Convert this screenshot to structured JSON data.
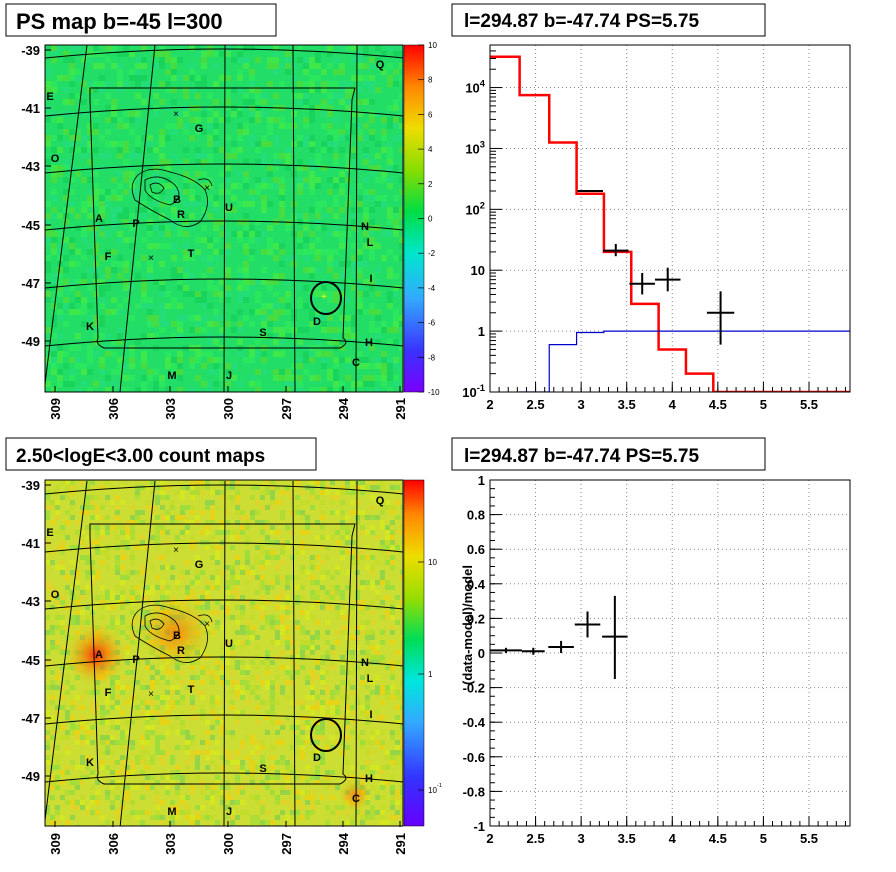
{
  "panels": {
    "tl": {
      "title": "PS map b=-45 l=300"
    },
    "tr": {
      "title": "l=294.87 b=-47.74 PS=5.75"
    },
    "bl": {
      "title": "2.50<logE<3.00 count maps"
    },
    "br": {
      "title": "l=294.87 b=-47.74 PS=5.75"
    }
  },
  "map_axes": {
    "y_ticks": [
      "-39",
      "-41",
      "-43",
      "-45",
      "-47",
      "-49"
    ],
    "x_ticks": [
      "309",
      "306",
      "303",
      "300",
      "297",
      "294",
      "291"
    ]
  },
  "source_labels": [
    "Q",
    "E",
    "G",
    "O",
    "B",
    "R",
    "U",
    "A",
    "P",
    "N",
    "L",
    "F",
    "T",
    "I",
    "D",
    "K",
    "S",
    "H",
    "M",
    "J",
    "C"
  ],
  "colorbar_top": {
    "ticks": [
      "10",
      "8",
      "6",
      "4",
      "2",
      "0",
      "-2",
      "-4",
      "-6",
      "-8",
      "-10"
    ]
  },
  "colorbar_bottom": {
    "ticks": [
      "10",
      "1",
      "10^-1"
    ]
  },
  "chart_data": [
    {
      "type": "map",
      "title": "PS map b=-45 l=300",
      "colorbar_range": [
        -10,
        10
      ],
      "colorscale": "rainbow"
    },
    {
      "type": "line",
      "title": "l=294.87 b=-47.74 PS=5.75",
      "x_ticks": [
        "2",
        "2.5",
        "3",
        "3.5",
        "4",
        "4.5",
        "5",
        "5.5"
      ],
      "y_ticks": [
        "10^-1",
        "1",
        "10",
        "10^2",
        "10^3",
        "10^4"
      ],
      "xlim": [
        2,
        5.95
      ],
      "ylim": [
        0.1,
        50000
      ],
      "y_scale": "log",
      "grid": true,
      "series": [
        {
          "color": "#ff0000",
          "x": [
            2.0,
            2.325,
            2.65,
            2.95,
            3.25,
            3.55,
            3.85,
            4.15,
            4.45,
            5.95
          ],
          "values": [
            32000,
            7500,
            1250,
            180,
            20,
            2.8,
            0.5,
            0.2,
            0.1,
            0.1
          ]
        },
        {
          "color": "#0000cc",
          "x": [
            2.0,
            2.325,
            2.65,
            2.95,
            3.25,
            3.55,
            3.85,
            5.95
          ],
          "values": [
            0.04,
            0.1,
            0.6,
            0.95,
            1.0,
            1.0,
            1.0,
            1.0
          ]
        }
      ],
      "data_points": [
        {
          "x": 3.1,
          "y": 200,
          "xerr": 0.14,
          "ylo": 195,
          "yhi": 205
        },
        {
          "x": 3.38,
          "y": 21,
          "xerr": 0.14,
          "ylo": 17,
          "yhi": 27
        },
        {
          "x": 3.67,
          "y": 6,
          "xerr": 0.14,
          "ylo": 4,
          "yhi": 9
        },
        {
          "x": 3.95,
          "y": 7,
          "xerr": 0.14,
          "ylo": 4.5,
          "yhi": 11
        },
        {
          "x": 4.53,
          "y": 2,
          "xerr": 0.15,
          "ylo": 0.6,
          "yhi": 4.5
        }
      ]
    },
    {
      "type": "map",
      "title": "2.50<logE<3.00 count maps",
      "colorbar_range": [
        0.05,
        30
      ],
      "colorscale": "rainbow-log"
    },
    {
      "type": "scatter",
      "title": "l=294.87 b=-47.74 PS=5.75",
      "ylabel": "(data-model)/model",
      "x_ticks": [
        "2",
        "2.5",
        "3",
        "3.5",
        "4",
        "4.5",
        "5",
        "5.5"
      ],
      "y_ticks": [
        "1",
        "0.8",
        "0.6",
        "0.4",
        "0.2",
        "0",
        "-0.2",
        "-0.4",
        "-0.6",
        "-0.8",
        "-1"
      ],
      "xlim": [
        2,
        5.95
      ],
      "ylim": [
        -1,
        1
      ],
      "grid": true,
      "data_points": [
        {
          "x": 2.175,
          "y": 0.015,
          "xerr": 0.175,
          "ylo": 0.0,
          "yhi": 0.03
        },
        {
          "x": 2.475,
          "y": 0.01,
          "xerr": 0.125,
          "ylo": -0.01,
          "yhi": 0.03
        },
        {
          "x": 2.78,
          "y": 0.035,
          "xerr": 0.14,
          "ylo": 0.0,
          "yhi": 0.07
        },
        {
          "x": 3.07,
          "y": 0.165,
          "xerr": 0.14,
          "ylo": 0.09,
          "yhi": 0.24
        },
        {
          "x": 3.37,
          "y": 0.095,
          "xerr": 0.14,
          "ylo": -0.15,
          "yhi": 0.33
        }
      ]
    }
  ]
}
